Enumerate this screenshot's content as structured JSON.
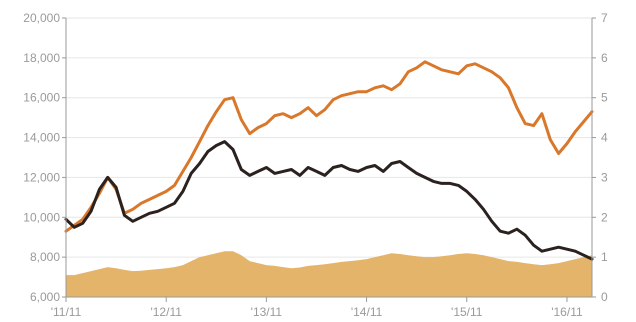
{
  "chart_data": {
    "type": "line",
    "y_left": {
      "ticks": [
        6000,
        8000,
        10000,
        12000,
        14000,
        16000,
        18000,
        20000
      ],
      "tick_labels": [
        "6,000",
        "8,000",
        "10,000",
        "12,000",
        "14,000",
        "16,000",
        "18,000",
        "20,000"
      ],
      "ylim": [
        6000,
        20000
      ]
    },
    "y_right": {
      "ticks": [
        0,
        1,
        2,
        3,
        4,
        5,
        6,
        7
      ],
      "tick_labels": [
        "0",
        "1",
        "2",
        "3",
        "4",
        "5",
        "6",
        "7"
      ],
      "ylim": [
        0,
        7
      ]
    },
    "x_axis": {
      "tick_labels": [
        "'11/11",
        "'12/11",
        "'13/11",
        "'14/11",
        "'15/11",
        "'16/11"
      ],
      "tick_positions": [
        0,
        12,
        24,
        36,
        48,
        60
      ],
      "xlim": [
        0,
        63
      ]
    },
    "grid": "horizontal",
    "series": [
      {
        "kind": "line",
        "axis": "left",
        "color": "#d9772b",
        "x": [
          0,
          1,
          2,
          3,
          4,
          5,
          6,
          7,
          8,
          9,
          10,
          11,
          12,
          13,
          14,
          15,
          16,
          17,
          18,
          19,
          20,
          21,
          22,
          23,
          24,
          25,
          26,
          27,
          28,
          29,
          30,
          31,
          32,
          33,
          34,
          35,
          36,
          37,
          38,
          39,
          40,
          41,
          42,
          43,
          44,
          45,
          46,
          47,
          48,
          49,
          50,
          51,
          52,
          53,
          54,
          55,
          56,
          57,
          58,
          59,
          60,
          61,
          62,
          63
        ],
        "values": [
          9300,
          9600,
          9900,
          10500,
          11200,
          12000,
          11400,
          10200,
          10400,
          10700,
          10900,
          11100,
          11300,
          11600,
          12300,
          13000,
          13800,
          14600,
          15300,
          15900,
          16000,
          14900,
          14200,
          14500,
          14700,
          15100,
          15200,
          15000,
          15200,
          15500,
          15100,
          15400,
          15900,
          16100,
          16200,
          16300,
          16300,
          16500,
          16600,
          16400,
          16700,
          17300,
          17500,
          17800,
          17600,
          17400,
          17300,
          17200,
          17600,
          17700,
          17500,
          17300,
          17000,
          16500,
          15500,
          14700,
          14600,
          15200,
          13900,
          13200,
          13700,
          14300,
          14800,
          15300
        ]
      },
      {
        "kind": "line",
        "axis": "left",
        "color": "#2b2220",
        "x": [
          0,
          1,
          2,
          3,
          4,
          5,
          6,
          7,
          8,
          9,
          10,
          11,
          12,
          13,
          14,
          15,
          16,
          17,
          18,
          19,
          20,
          21,
          22,
          23,
          24,
          25,
          26,
          27,
          28,
          29,
          30,
          31,
          32,
          33,
          34,
          35,
          36,
          37,
          38,
          39,
          40,
          41,
          42,
          43,
          44,
          45,
          46,
          47,
          48,
          49,
          50,
          51,
          52,
          53,
          54,
          55,
          56,
          57,
          58,
          59,
          60,
          61,
          62,
          63
        ],
        "values": [
          9900,
          9500,
          9700,
          10300,
          11400,
          12000,
          11500,
          10100,
          9800,
          10000,
          10200,
          10300,
          10500,
          10700,
          11300,
          12200,
          12700,
          13300,
          13600,
          13800,
          13400,
          12400,
          12100,
          12300,
          12500,
          12200,
          12300,
          12400,
          12100,
          12500,
          12300,
          12100,
          12500,
          12600,
          12400,
          12300,
          12500,
          12600,
          12300,
          12700,
          12800,
          12500,
          12200,
          12000,
          11800,
          11700,
          11700,
          11600,
          11300,
          10900,
          10400,
          9800,
          9300,
          9200,
          9400,
          9100,
          8600,
          8300,
          8400,
          8500,
          8400,
          8300,
          8100,
          7900
        ]
      },
      {
        "kind": "area",
        "axis": "right",
        "color": "#e3b46a",
        "x": [
          0,
          1,
          2,
          3,
          4,
          5,
          6,
          7,
          8,
          9,
          10,
          11,
          12,
          13,
          14,
          15,
          16,
          17,
          18,
          19,
          20,
          21,
          22,
          23,
          24,
          25,
          26,
          27,
          28,
          29,
          30,
          31,
          32,
          33,
          34,
          35,
          36,
          37,
          38,
          39,
          40,
          41,
          42,
          43,
          44,
          45,
          46,
          47,
          48,
          49,
          50,
          51,
          52,
          53,
          54,
          55,
          56,
          57,
          58,
          59,
          60,
          61,
          62,
          63
        ],
        "values": [
          0.55,
          0.55,
          0.6,
          0.65,
          0.7,
          0.75,
          0.72,
          0.68,
          0.65,
          0.66,
          0.68,
          0.7,
          0.72,
          0.75,
          0.8,
          0.9,
          1.0,
          1.05,
          1.1,
          1.15,
          1.15,
          1.05,
          0.9,
          0.85,
          0.8,
          0.78,
          0.75,
          0.72,
          0.74,
          0.78,
          0.8,
          0.82,
          0.85,
          0.88,
          0.9,
          0.92,
          0.95,
          1.0,
          1.05,
          1.1,
          1.08,
          1.05,
          1.02,
          1.0,
          1.0,
          1.02,
          1.05,
          1.08,
          1.1,
          1.08,
          1.05,
          1.0,
          0.95,
          0.9,
          0.88,
          0.85,
          0.82,
          0.8,
          0.82,
          0.85,
          0.9,
          0.95,
          1.0,
          1.05
        ]
      }
    ]
  }
}
